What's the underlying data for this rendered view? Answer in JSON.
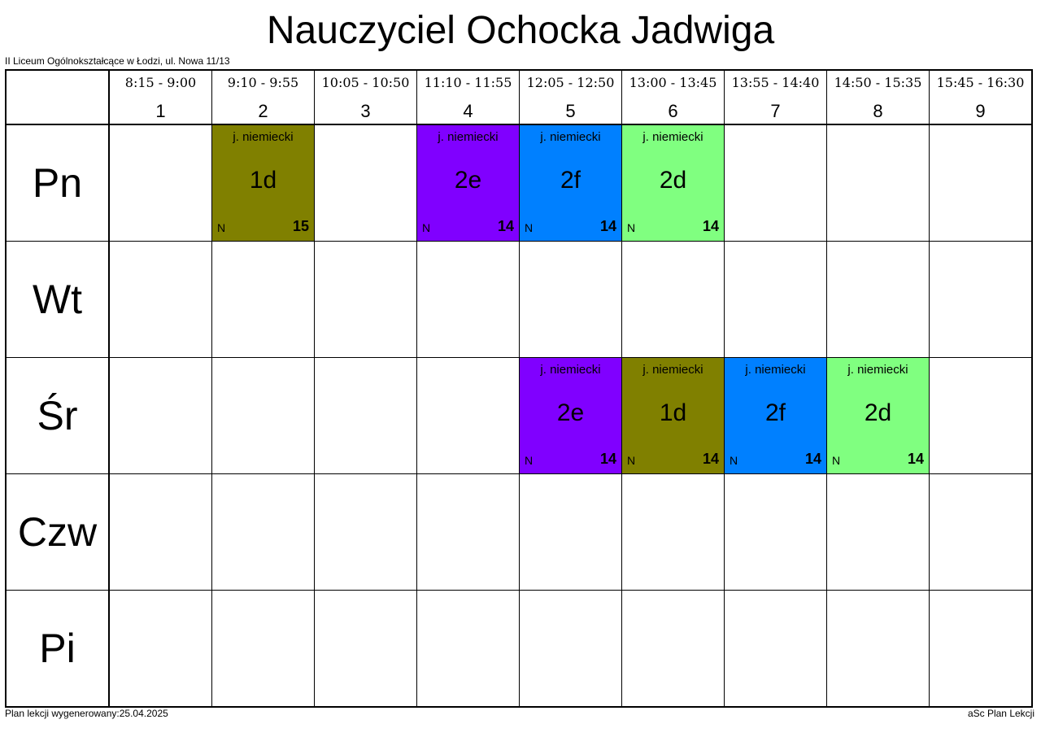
{
  "title": "Nauczyciel Ochocka Jadwiga",
  "school": "II Liceum Ogólnokształcące w Łodzi, ul. Nowa 11/13",
  "footer": {
    "generated": "Plan lekcji wygenerowany:25.04.2025",
    "software": "aSc Plan Lekcji"
  },
  "periods": [
    {
      "num": "1",
      "time": "8:15 - 9:00"
    },
    {
      "num": "2",
      "time": "9:10 - 9:55"
    },
    {
      "num": "3",
      "time": "10:05 - 10:50"
    },
    {
      "num": "4",
      "time": "11:10 - 11:55"
    },
    {
      "num": "5",
      "time": "12:05 - 12:50"
    },
    {
      "num": "6",
      "time": "13:00 - 13:45"
    },
    {
      "num": "7",
      "time": "13:55 - 14:40"
    },
    {
      "num": "8",
      "time": "14:50 - 15:35"
    },
    {
      "num": "9",
      "time": "15:45 - 16:30"
    }
  ],
  "days": [
    {
      "name": "Pn",
      "cells": [
        null,
        {
          "subject": "j. niemiecki",
          "class": "1d",
          "group": "N",
          "room": "15",
          "color": "#808000"
        },
        null,
        {
          "subject": "j. niemiecki",
          "class": "2e",
          "group": "N",
          "room": "14",
          "color": "#8000ff"
        },
        {
          "subject": "j. niemiecki",
          "class": "2f",
          "group": "N",
          "room": "14",
          "color": "#0080ff"
        },
        {
          "subject": "j. niemiecki",
          "class": "2d",
          "group": "N",
          "room": "14",
          "color": "#80ff80"
        },
        null,
        null,
        null
      ]
    },
    {
      "name": "Wt",
      "cells": [
        null,
        null,
        null,
        null,
        null,
        null,
        null,
        null,
        null
      ]
    },
    {
      "name": "Śr",
      "cells": [
        null,
        null,
        null,
        null,
        {
          "subject": "j. niemiecki",
          "class": "2e",
          "group": "N",
          "room": "14",
          "color": "#8000ff"
        },
        {
          "subject": "j. niemiecki",
          "class": "1d",
          "group": "N",
          "room": "14",
          "color": "#808000"
        },
        {
          "subject": "j. niemiecki",
          "class": "2f",
          "group": "N",
          "room": "14",
          "color": "#0080ff"
        },
        {
          "subject": "j. niemiecki",
          "class": "2d",
          "group": "N",
          "room": "14",
          "color": "#80ff80"
        },
        null
      ]
    },
    {
      "name": "Czw",
      "cells": [
        null,
        null,
        null,
        null,
        null,
        null,
        null,
        null,
        null
      ]
    },
    {
      "name": "Pi",
      "cells": [
        null,
        null,
        null,
        null,
        null,
        null,
        null,
        null,
        null
      ]
    }
  ]
}
